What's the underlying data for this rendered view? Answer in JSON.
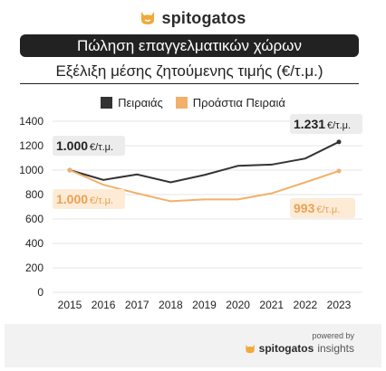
{
  "brand": {
    "name": "spitogatos"
  },
  "title": "Πώληση επαγγελματικών χώρων",
  "subtitle": "Εξέλιξη μέσης ζητούμενης τιμής (€/τ.μ.)",
  "colors": {
    "accent": "#f2b06a",
    "dark": "#333333",
    "title_bg": "#222222",
    "grid": "#e6e6e6"
  },
  "chart_data": {
    "type": "line",
    "x": [
      "2015",
      "2016",
      "2017",
      "2018",
      "2019",
      "2020",
      "2021",
      "2022",
      "2023"
    ],
    "yticks": [
      "0",
      "200",
      "400",
      "600",
      "800",
      "1000",
      "1200",
      "1400"
    ],
    "ylim": [
      0,
      1400
    ],
    "grid": true,
    "legend_position": "top-center",
    "series": [
      {
        "name": "Πειραιάς",
        "color": "#333333",
        "values": [
          1000,
          920,
          965,
          900,
          960,
          1035,
          1045,
          1095,
          1231
        ]
      },
      {
        "name": "Προάστια Πειραιά",
        "color": "#f2b06a",
        "values": [
          1000,
          880,
          810,
          745,
          760,
          760,
          810,
          900,
          993
        ]
      }
    ],
    "annotations": [
      {
        "series": 0,
        "index": 0,
        "value": "1.000",
        "unit": "€/τ.μ."
      },
      {
        "series": 0,
        "index": 8,
        "value": "1.231",
        "unit": "€/τ.μ."
      },
      {
        "series": 1,
        "index": 0,
        "value": "1.000",
        "unit": "€/τ.μ."
      },
      {
        "series": 1,
        "index": 8,
        "value": "993",
        "unit": "€/τ.μ."
      }
    ]
  },
  "footer": {
    "powered_by": "powered by",
    "brand": "spitogatos",
    "suffix": "insights"
  }
}
